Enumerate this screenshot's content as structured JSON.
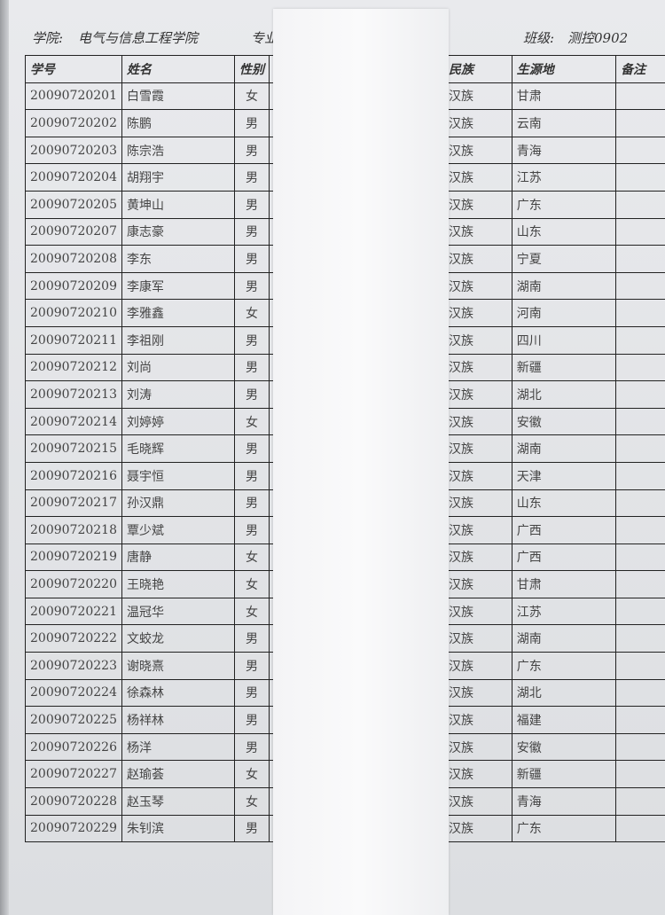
{
  "header": {
    "college_label": "学院:",
    "college": "电气与信息工程学院",
    "major_label": "专业",
    "class_label": "班级:",
    "class": "测控0902"
  },
  "left_columns": [
    "学号",
    "姓名",
    "性别"
  ],
  "right_columns": [
    "民族",
    "生源地",
    "备注"
  ],
  "rows": [
    {
      "id": "20090720201",
      "name": "白雪霞",
      "gender": "女",
      "ethnicity": "汉族",
      "origin": "甘肃"
    },
    {
      "id": "20090720202",
      "name": "陈鹏",
      "gender": "男",
      "ethnicity": "汉族",
      "origin": "云南"
    },
    {
      "id": "20090720203",
      "name": "陈宗浩",
      "gender": "男",
      "ethnicity": "汉族",
      "origin": "青海"
    },
    {
      "id": "20090720204",
      "name": "胡翔宇",
      "gender": "男",
      "ethnicity": "汉族",
      "origin": "江苏"
    },
    {
      "id": "20090720205",
      "name": "黄坤山",
      "gender": "男",
      "ethnicity": "汉族",
      "origin": "广东"
    },
    {
      "id": "20090720207",
      "name": "康志豪",
      "gender": "男",
      "ethnicity": "汉族",
      "origin": "山东"
    },
    {
      "id": "20090720208",
      "name": "李东",
      "gender": "男",
      "ethnicity": "汉族",
      "origin": "宁夏"
    },
    {
      "id": "20090720209",
      "name": "李康军",
      "gender": "男",
      "ethnicity": "汉族",
      "origin": "湖南"
    },
    {
      "id": "20090720210",
      "name": "李雅鑫",
      "gender": "女",
      "ethnicity": "汉族",
      "origin": "河南"
    },
    {
      "id": "20090720211",
      "name": "李祖刚",
      "gender": "男",
      "ethnicity": "汉族",
      "origin": "四川"
    },
    {
      "id": "20090720212",
      "name": "刘尚",
      "gender": "男",
      "ethnicity": "汉族",
      "origin": "新疆"
    },
    {
      "id": "20090720213",
      "name": "刘涛",
      "gender": "男",
      "ethnicity": "汉族",
      "origin": "湖北"
    },
    {
      "id": "20090720214",
      "name": "刘婷婷",
      "gender": "女",
      "ethnicity": "汉族",
      "origin": "安徽"
    },
    {
      "id": "20090720215",
      "name": "毛晓辉",
      "gender": "男",
      "ethnicity": "汉族",
      "origin": "湖南"
    },
    {
      "id": "20090720216",
      "name": "聂宇恒",
      "gender": "男",
      "ethnicity": "汉族",
      "origin": "天津"
    },
    {
      "id": "20090720217",
      "name": "孙汉鼎",
      "gender": "男",
      "ethnicity": "汉族",
      "origin": "山东"
    },
    {
      "id": "20090720218",
      "name": "覃少斌",
      "gender": "男",
      "ethnicity": "汉族",
      "origin": "广西"
    },
    {
      "id": "20090720219",
      "name": "唐静",
      "gender": "女",
      "ethnicity": "汉族",
      "origin": "广西"
    },
    {
      "id": "20090720220",
      "name": "王晓艳",
      "gender": "女",
      "ethnicity": "汉族",
      "origin": "甘肃"
    },
    {
      "id": "20090720221",
      "name": "温冠华",
      "gender": "女",
      "ethnicity": "汉族",
      "origin": "江苏"
    },
    {
      "id": "20090720222",
      "name": "文蛟龙",
      "gender": "男",
      "ethnicity": "汉族",
      "origin": "湖南"
    },
    {
      "id": "20090720223",
      "name": "谢晓熹",
      "gender": "男",
      "ethnicity": "汉族",
      "origin": "广东"
    },
    {
      "id": "20090720224",
      "name": "徐森林",
      "gender": "男",
      "ethnicity": "汉族",
      "origin": "湖北"
    },
    {
      "id": "20090720225",
      "name": "杨祥林",
      "gender": "男",
      "ethnicity": "汉族",
      "origin": "福建"
    },
    {
      "id": "20090720226",
      "name": "杨洋",
      "gender": "男",
      "ethnicity": "汉族",
      "origin": "安徽"
    },
    {
      "id": "20090720227",
      "name": "赵瑜荟",
      "gender": "女",
      "ethnicity": "汉族",
      "origin": "新疆"
    },
    {
      "id": "20090720228",
      "name": "赵玉琴",
      "gender": "女",
      "ethnicity": "汉族",
      "origin": "青海"
    },
    {
      "id": "20090720229",
      "name": "朱钊滨",
      "gender": "男",
      "ethnicity": "汉族",
      "origin": "广东"
    }
  ]
}
